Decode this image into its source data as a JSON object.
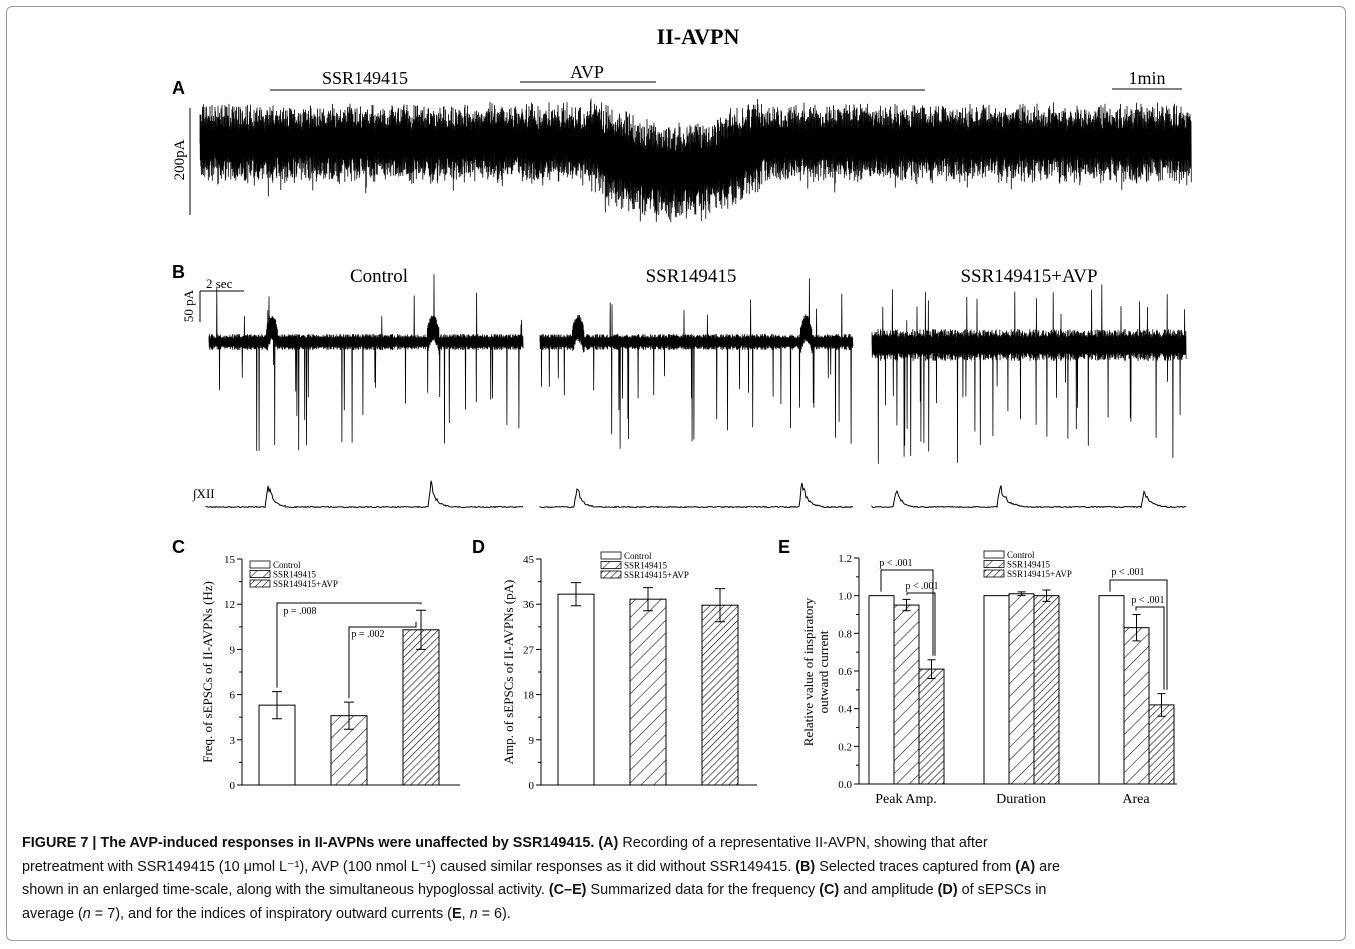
{
  "figure": {
    "main_title": "II-AVPN",
    "panel_labels": [
      "A",
      "B",
      "C",
      "D",
      "E"
    ]
  },
  "panel_a": {
    "drug_bars": [
      "SSR149415",
      "AVP"
    ],
    "time_scale": "1min",
    "amp_scale": "200pA"
  },
  "panel_b": {
    "conditions": [
      "Control",
      "SSR149415",
      "SSR149415+AVP"
    ],
    "time_scale": "2 sec",
    "amp_scale": "50 pA",
    "nerve_label": "∫XII"
  },
  "chart_data": [
    {
      "panel": "C",
      "type": "bar",
      "categories": [
        "Control",
        "SSR149415",
        "SSR149415+AVP"
      ],
      "values": [
        5.3,
        4.6,
        10.3
      ],
      "errors": [
        0.9,
        0.9,
        1.3
      ],
      "ylabel": "Freq. of sEPSCs of II-AVPNs (Hz)",
      "ylim": [
        0,
        15
      ],
      "yticks": [
        "0",
        "3",
        "6",
        "9",
        "12",
        "15"
      ],
      "legend": [
        "Control",
        "SSR149415",
        "SSR149415+AVP"
      ],
      "annotations": [
        "p = .008",
        "p = .002"
      ]
    },
    {
      "panel": "D",
      "type": "bar",
      "categories": [
        "Control",
        "SSR149415",
        "SSR149415+AVP"
      ],
      "values": [
        38.0,
        37.0,
        35.8
      ],
      "errors": [
        2.3,
        2.3,
        3.3
      ],
      "ylabel": "Amp. of sEPSCs of II-AVPNs (pA)",
      "ylim": [
        0,
        45
      ],
      "yticks": [
        "0",
        "9",
        "18",
        "27",
        "36",
        "45"
      ],
      "legend": [
        "Control",
        "SSR149415",
        "SSR149415+AVP"
      ]
    },
    {
      "panel": "E",
      "type": "bar",
      "groups": [
        "Peak Amp.",
        "Duration",
        "Area"
      ],
      "series": [
        {
          "name": "Control",
          "values": [
            1.0,
            1.0,
            1.0
          ],
          "errors": [
            0,
            0,
            0
          ]
        },
        {
          "name": "SSR149415",
          "values": [
            0.95,
            1.01,
            0.83
          ],
          "errors": [
            0.03,
            0.01,
            0.07
          ]
        },
        {
          "name": "SSR149415+AVP",
          "values": [
            0.61,
            1.0,
            0.42
          ],
          "errors": [
            0.05,
            0.03,
            0.06
          ]
        }
      ],
      "ylabel_lines": [
        "Relative value of inspiratory",
        "outward current"
      ],
      "ylim": [
        0,
        1.2
      ],
      "yticks": [
        "0.0",
        "0.2",
        "0.4",
        "0.6",
        "0.8",
        "1.0",
        "1.2"
      ],
      "legend": [
        "Control",
        "SSR149415",
        "SSR149415+AVP"
      ],
      "annotations": [
        "p < .001",
        "p < .001",
        "p < .001",
        "p < .001"
      ]
    }
  ],
  "caption": {
    "figure_label": "FIGURE 7 |",
    "title": "The AVP-induced responses in II-AVPNs were unaffected by SSR149415.",
    "line1_rest": " Recording of a representative II-AVPN, showing that after",
    "line2": "pretreatment with SSR149415 (10 μmol L⁻¹), AVP (100 nmol L⁻¹) caused similar responses as it did without SSR149415.",
    "line3_a": " Selected traces captured from ",
    "line3_b": " are",
    "line4_a": "shown in an enlarged time-scale, along with the simultaneous hypoglossal activity. ",
    "line4_b": " Summarized data for the frequency ",
    "line4_c": " and amplitude ",
    "line4_d": " of sEPSCs in",
    "line5_a": "average (",
    "line5_n1": "n",
    "line5_b": " = 7), and for the indices of inspiratory outward currents (",
    "line5_e": "E",
    "line5_c": ", ",
    "line5_n2": "n",
    "line5_d": " = 6).",
    "ref_a": "(A)",
    "ref_b": "(B)",
    "ref_a2": "(A)",
    "ref_ce": "(C–E)",
    "ref_c": "(C)",
    "ref_d": "(D)"
  }
}
